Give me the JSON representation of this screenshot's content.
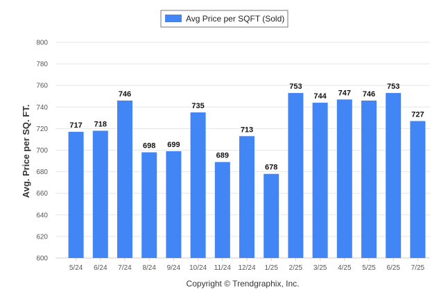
{
  "legend": {
    "label": "Avg Price per SQFT (Sold)"
  },
  "copyright": "Copyright © Trendgraphix, Inc.",
  "colors": {
    "bar": "#4285f4",
    "grid": "#e6e6e6",
    "axis": "#cccccc"
  },
  "chart_data": {
    "type": "bar",
    "title": "",
    "xlabel": "",
    "ylabel": "Avg. Price per SQ. FT.",
    "categories": [
      "5/24",
      "6/24",
      "7/24",
      "8/24",
      "9/24",
      "10/24",
      "11/24",
      "12/24",
      "1/25",
      "2/25",
      "3/25",
      "4/25",
      "5/25",
      "6/25",
      "7/25"
    ],
    "series": [
      {
        "name": "Avg Price per SQFT (Sold)",
        "values": [
          717,
          718,
          746,
          698,
          699,
          735,
          689,
          713,
          678,
          753,
          744,
          747,
          746,
          753,
          727
        ]
      }
    ],
    "ylim": [
      600,
      800
    ],
    "yticks": [
      600,
      620,
      640,
      660,
      680,
      700,
      720,
      740,
      760,
      780,
      800
    ],
    "grid": true,
    "data_labels": true,
    "legend_position": "top-center"
  }
}
